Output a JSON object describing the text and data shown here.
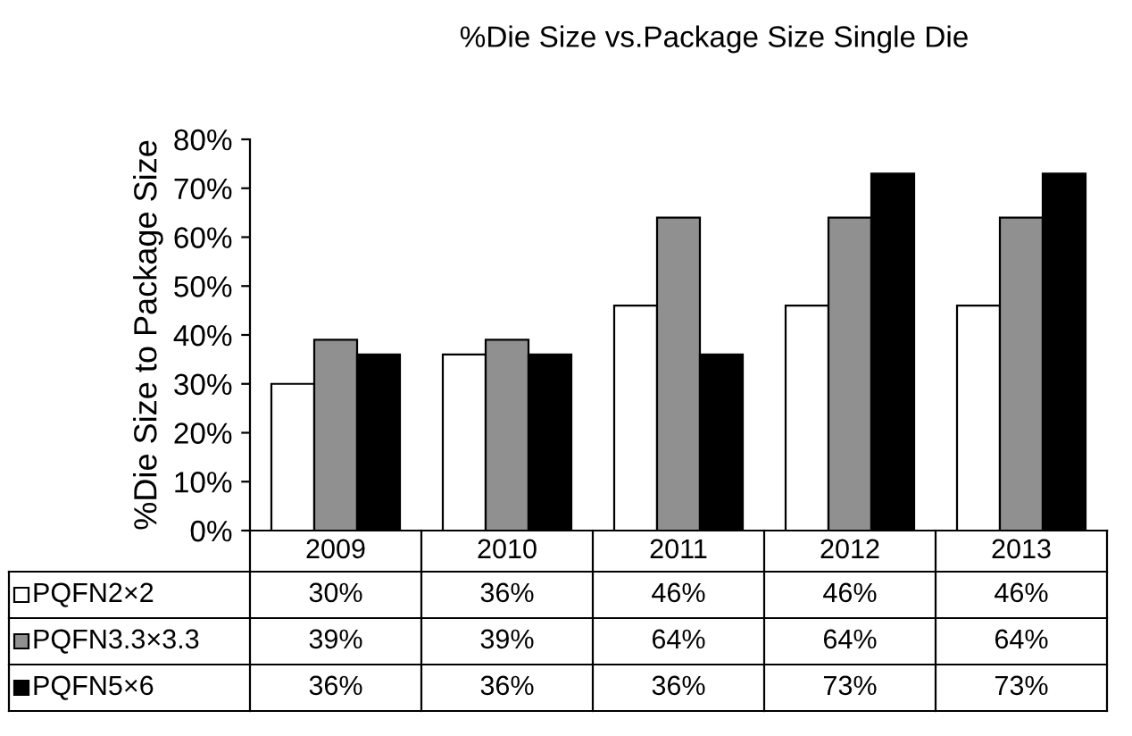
{
  "chart_data": {
    "type": "bar",
    "title": "%Die Size vs.Package Size Single Die",
    "ylabel": "%Die Size to Package Size",
    "categories": [
      "2009",
      "2010",
      "2011",
      "2012",
      "2013"
    ],
    "series": [
      {
        "name": "PQFN2×2",
        "color": "#ffffff",
        "values": [
          30,
          36,
          46,
          46,
          46
        ],
        "value_labels": [
          "30%",
          "36%",
          "46%",
          "46%",
          "46%"
        ]
      },
      {
        "name": "PQFN3.3×3.3",
        "color": "#909090",
        "values": [
          39,
          39,
          64,
          64,
          64
        ],
        "value_labels": [
          "39%",
          "39%",
          "64%",
          "64%",
          "64%"
        ]
      },
      {
        "name": "PQFN5×6",
        "color": "#000000",
        "values": [
          36,
          36,
          36,
          73,
          73
        ],
        "value_labels": [
          "36%",
          "36%",
          "36%",
          "73%",
          "73%"
        ]
      }
    ],
    "ylim": [
      0,
      80
    ],
    "yticks": [
      {
        "value": 0,
        "label": "0%"
      },
      {
        "value": 10,
        "label": "10%"
      },
      {
        "value": 20,
        "label": "20%"
      },
      {
        "value": 30,
        "label": "30%"
      },
      {
        "value": 40,
        "label": "40%"
      },
      {
        "value": 50,
        "label": "50%"
      },
      {
        "value": 60,
        "label": "60%"
      },
      {
        "value": 70,
        "label": "70%"
      },
      {
        "value": 80,
        "label": "80%"
      }
    ],
    "legend": "bottom left",
    "grid": false
  }
}
